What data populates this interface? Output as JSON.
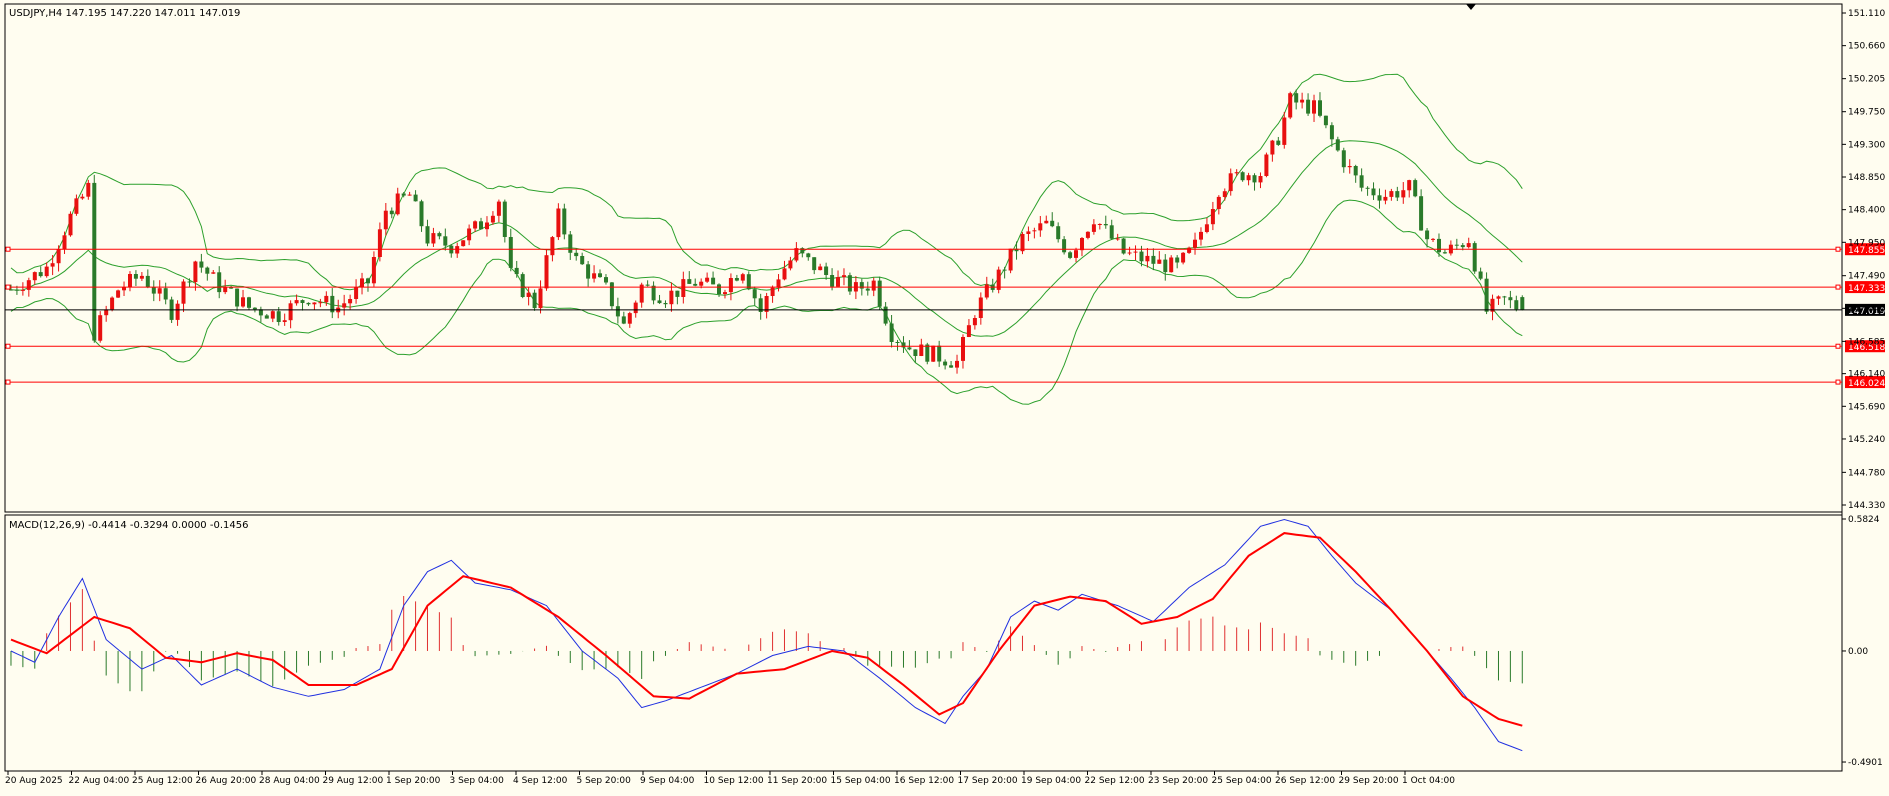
{
  "chart_data": [
    {
      "type": "candlestick",
      "title": "USDJPY,H4  147.195 147.220 147.011 147.019",
      "symbol": "USDJPY",
      "timeframe": "H4",
      "last_bar": {
        "open": 147.195,
        "high": 147.22,
        "low": 147.011,
        "close": 147.019
      },
      "current_price": 147.019,
      "ylim": [
        144.33,
        151.11
      ],
      "y_ticks": [
        "151.110",
        "150.660",
        "150.205",
        "149.750",
        "149.300",
        "148.850",
        "148.400",
        "147.950",
        "147.490",
        "147.040",
        "146.585",
        "146.140",
        "145.690",
        "145.240",
        "144.780",
        "144.330"
      ],
      "horizontal_lines": [
        {
          "price": 147.855,
          "label": "147.855",
          "color": "#ff0000"
        },
        {
          "price": 147.333,
          "label": "147.333",
          "color": "#ff0000"
        },
        {
          "price": 146.518,
          "label": "146.518",
          "color": "#ff0000"
        },
        {
          "price": 146.024,
          "label": "146.024",
          "color": "#ff0000"
        }
      ],
      "x_labels": [
        "20 Aug 2025",
        "22 Aug 04:00",
        "25 Aug 12:00",
        "26 Aug 20:00",
        "28 Aug 04:00",
        "29 Aug 12:00",
        "1 Sep 20:00",
        "3 Sep 04:00",
        "4 Sep 12:00",
        "5 Sep 20:00",
        "9 Sep 04:00",
        "10 Sep 12:00",
        "11 Sep 20:00",
        "15 Sep 04:00",
        "16 Sep 12:00",
        "17 Sep 20:00",
        "19 Sep 04:00",
        "22 Sep 12:00",
        "23 Sep 20:00",
        "25 Sep 04:00",
        "26 Sep 12:00",
        "29 Sep 20:00",
        "1 Oct 04:00"
      ],
      "overlay": "Bollinger Bands",
      "colors": {
        "bull": "#e81010",
        "bear": "#2a7a2a",
        "bands": "#2ca02c",
        "grid_line": "#000000"
      },
      "price_path": [
        [
          0,
          147.3
        ],
        [
          6,
          147.6
        ],
        [
          10,
          148.3
        ],
        [
          13,
          148.7
        ],
        [
          14,
          146.7
        ],
        [
          18,
          147.3
        ],
        [
          22,
          147.5
        ],
        [
          27,
          147.0
        ],
        [
          31,
          147.7
        ],
        [
          35,
          147.35
        ],
        [
          40,
          147.05
        ],
        [
          45,
          146.95
        ],
        [
          50,
          147.2
        ],
        [
          55,
          147.05
        ],
        [
          60,
          147.4
        ],
        [
          63,
          148.4
        ],
        [
          67,
          148.6
        ],
        [
          70,
          148.0
        ],
        [
          74,
          147.9
        ],
        [
          79,
          148.2
        ],
        [
          82,
          148.55
        ],
        [
          84,
          147.5
        ],
        [
          88,
          147.1
        ],
        [
          92,
          148.3
        ],
        [
          95,
          147.7
        ],
        [
          100,
          147.3
        ],
        [
          103,
          146.8
        ],
        [
          106,
          147.35
        ],
        [
          110,
          147.2
        ],
        [
          115,
          147.4
        ],
        [
          119,
          147.3
        ],
        [
          123,
          147.6
        ],
        [
          126,
          147.0
        ],
        [
          129,
          147.5
        ],
        [
          132,
          147.8
        ],
        [
          137,
          147.5
        ],
        [
          142,
          147.3
        ],
        [
          145,
          147.4
        ],
        [
          148,
          146.7
        ],
        [
          151,
          146.5
        ],
        [
          155,
          146.4
        ],
        [
          159,
          146.3
        ],
        [
          162,
          147.0
        ],
        [
          166,
          147.5
        ],
        [
          170,
          148.0
        ],
        [
          174,
          148.2
        ],
        [
          178,
          147.8
        ],
        [
          182,
          148.3
        ],
        [
          187,
          147.8
        ],
        [
          191,
          147.7
        ],
        [
          196,
          147.6
        ],
        [
          199,
          147.9
        ],
        [
          203,
          148.7
        ],
        [
          207,
          148.9
        ],
        [
          210,
          148.9
        ],
        [
          213,
          149.4
        ],
        [
          215,
          149.9
        ],
        [
          219,
          149.8
        ],
        [
          223,
          149.2
        ],
        [
          227,
          148.7
        ],
        [
          231,
          148.6
        ],
        [
          235,
          148.7
        ],
        [
          238,
          148.0
        ],
        [
          241,
          147.8
        ],
        [
          245,
          148.0
        ],
        [
          248,
          147.0
        ],
        [
          251,
          147.15
        ],
        [
          254,
          147.02
        ]
      ]
    },
    {
      "type": "bar+line",
      "title": "MACD(12,26,9) -0.4414 -0.3294 0.0000 -0.1456",
      "ylim": [
        -0.49,
        0.5824
      ],
      "y_ticks": [
        "0.5824",
        "0.00",
        "-0.4901"
      ],
      "colors": {
        "histogram_pos": "#e03030",
        "histogram_neg": "#2a7a2a",
        "macd_line": "#2030e0",
        "signal_line": "#ff0000"
      },
      "macd_path": [
        [
          0,
          0.0
        ],
        [
          4,
          -0.05
        ],
        [
          8,
          0.15
        ],
        [
          12,
          0.32
        ],
        [
          16,
          0.05
        ],
        [
          22,
          -0.08
        ],
        [
          27,
          -0.02
        ],
        [
          32,
          -0.15
        ],
        [
          38,
          -0.08
        ],
        [
          44,
          -0.16
        ],
        [
          50,
          -0.2
        ],
        [
          56,
          -0.17
        ],
        [
          62,
          -0.08
        ],
        [
          66,
          0.2
        ],
        [
          70,
          0.35
        ],
        [
          74,
          0.4
        ],
        [
          78,
          0.3
        ],
        [
          84,
          0.27
        ],
        [
          90,
          0.2
        ],
        [
          96,
          0.0
        ],
        [
          102,
          -0.12
        ],
        [
          106,
          -0.25
        ],
        [
          110,
          -0.22
        ],
        [
          116,
          -0.16
        ],
        [
          122,
          -0.1
        ],
        [
          128,
          -0.02
        ],
        [
          134,
          0.02
        ],
        [
          140,
          0.0
        ],
        [
          146,
          -0.12
        ],
        [
          152,
          -0.25
        ],
        [
          157,
          -0.32
        ],
        [
          160,
          -0.2
        ],
        [
          164,
          -0.08
        ],
        [
          168,
          0.15
        ],
        [
          172,
          0.22
        ],
        [
          176,
          0.18
        ],
        [
          180,
          0.25
        ],
        [
          186,
          0.2
        ],
        [
          192,
          0.13
        ],
        [
          198,
          0.28
        ],
        [
          204,
          0.38
        ],
        [
          210,
          0.55
        ],
        [
          214,
          0.58
        ],
        [
          218,
          0.55
        ],
        [
          222,
          0.42
        ],
        [
          226,
          0.3
        ],
        [
          232,
          0.18
        ],
        [
          238,
          0.0
        ],
        [
          242,
          -0.12
        ],
        [
          246,
          -0.25
        ],
        [
          250,
          -0.4
        ],
        [
          254,
          -0.44
        ]
      ],
      "signal_path": [
        [
          0,
          0.05
        ],
        [
          6,
          -0.01
        ],
        [
          14,
          0.15
        ],
        [
          20,
          0.1
        ],
        [
          26,
          -0.03
        ],
        [
          32,
          -0.05
        ],
        [
          38,
          -0.01
        ],
        [
          44,
          -0.04
        ],
        [
          50,
          -0.15
        ],
        [
          58,
          -0.15
        ],
        [
          64,
          -0.08
        ],
        [
          70,
          0.2
        ],
        [
          76,
          0.33
        ],
        [
          84,
          0.28
        ],
        [
          92,
          0.15
        ],
        [
          100,
          -0.02
        ],
        [
          108,
          -0.2
        ],
        [
          114,
          -0.21
        ],
        [
          122,
          -0.1
        ],
        [
          130,
          -0.08
        ],
        [
          138,
          0.0
        ],
        [
          144,
          -0.03
        ],
        [
          150,
          -0.15
        ],
        [
          156,
          -0.28
        ],
        [
          160,
          -0.23
        ],
        [
          166,
          0.0
        ],
        [
          172,
          0.2
        ],
        [
          178,
          0.24
        ],
        [
          184,
          0.22
        ],
        [
          190,
          0.12
        ],
        [
          196,
          0.15
        ],
        [
          202,
          0.23
        ],
        [
          208,
          0.42
        ],
        [
          214,
          0.52
        ],
        [
          220,
          0.5
        ],
        [
          226,
          0.35
        ],
        [
          232,
          0.18
        ],
        [
          238,
          0.0
        ],
        [
          244,
          -0.2
        ],
        [
          250,
          -0.3
        ],
        [
          254,
          -0.33
        ]
      ]
    }
  ]
}
